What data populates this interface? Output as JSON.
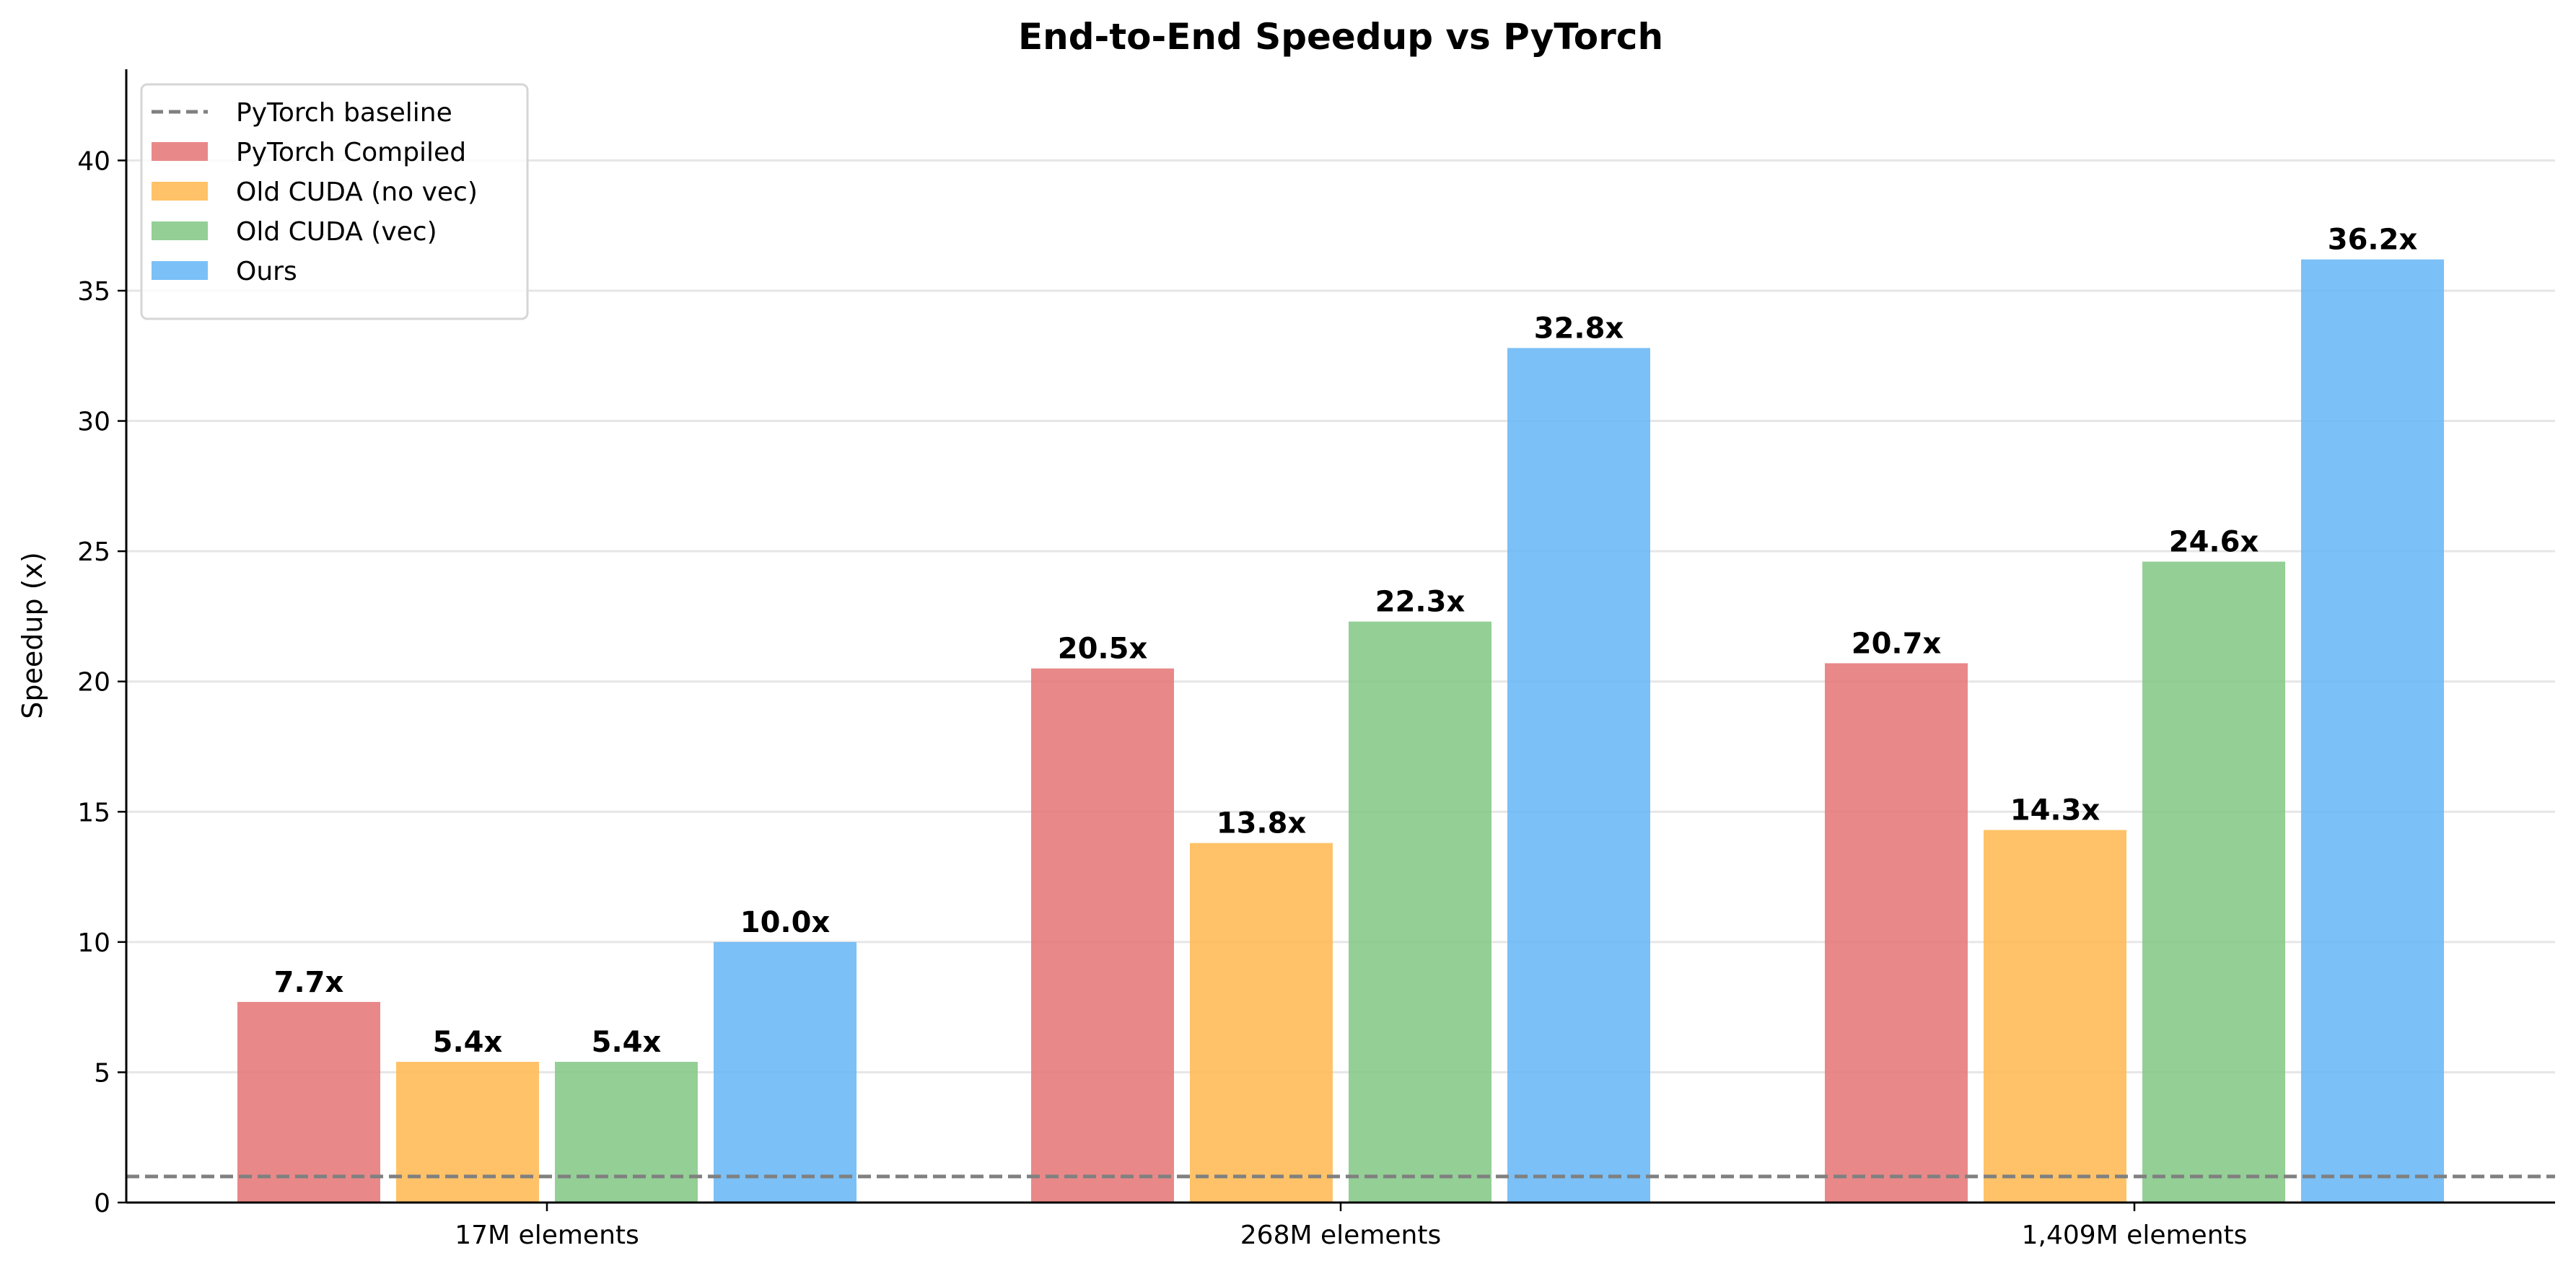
{
  "chart_data": {
    "type": "bar",
    "title": "End-to-End Speedup vs PyTorch",
    "xlabel": "",
    "ylabel": "Speedup (x)",
    "categories": [
      "17M elements",
      "268M elements",
      "1,409M elements"
    ],
    "series": [
      {
        "name": "PyTorch Compiled",
        "values": [
          7.7,
          20.5,
          20.7
        ],
        "labels": [
          "7.7x",
          "20.5x",
          "20.7x"
        ],
        "color": "#e57373"
      },
      {
        "name": "Old CUDA (no vec)",
        "values": [
          5.4,
          13.8,
          14.3
        ],
        "labels": [
          "5.4x",
          "13.8x",
          "14.3x"
        ],
        "color": "#ffb74d"
      },
      {
        "name": "Old CUDA (vec)",
        "values": [
          5.4,
          22.3,
          24.6
        ],
        "labels": [
          "5.4x",
          "22.3x",
          "24.6x"
        ],
        "color": "#81c784"
      },
      {
        "name": "Ours",
        "values": [
          10.0,
          32.8,
          36.2
        ],
        "labels": [
          "10.0x",
          "32.8x",
          "36.2x"
        ],
        "color": "#64b5f6"
      }
    ],
    "baseline": {
      "name": "PyTorch baseline",
      "value": 1.0,
      "color": "#808080",
      "style": "dashed"
    },
    "ylim": [
      0,
      43.5
    ],
    "yticks": [
      0,
      5,
      10,
      15,
      20,
      25,
      30,
      35,
      40
    ],
    "grid": "horizontal",
    "legend": "top-left"
  }
}
